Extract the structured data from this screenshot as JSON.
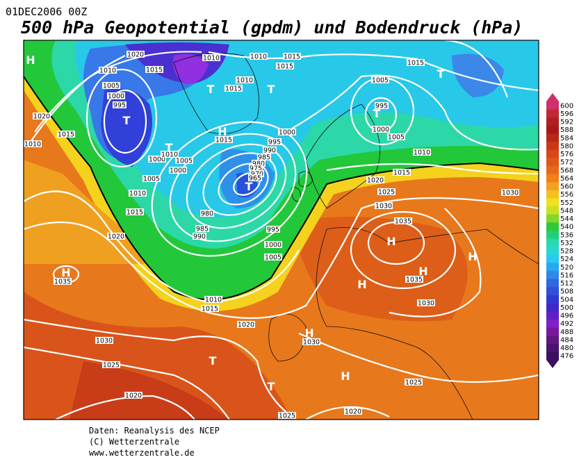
{
  "header": {
    "date": "01DEC2006 00Z",
    "title": "500 hPa Geopotential (gpdm) und Bodendruck (hPa)"
  },
  "colorbar": {
    "ticks": [
      600,
      596,
      592,
      588,
      584,
      580,
      576,
      572,
      568,
      564,
      560,
      556,
      552,
      548,
      544,
      540,
      536,
      532,
      528,
      524,
      520,
      516,
      512,
      508,
      504,
      500,
      496,
      492,
      488,
      484,
      480,
      476
    ]
  },
  "map": {
    "pressure_centers": [
      "H",
      "T",
      "T",
      "T",
      "H",
      "T",
      "T",
      "T",
      "T",
      "H",
      "H",
      "H",
      "H",
      "H",
      "H",
      "T",
      "T",
      "H"
    ],
    "isobar_labels": [
      1020,
      1010,
      1015,
      1005,
      1000,
      995,
      1010,
      1010,
      1015,
      1015,
      1010,
      1015,
      1005,
      995,
      1000,
      1005,
      1015,
      1020,
      1015,
      1010,
      1000,
      1005,
      1010,
      1005,
      1000,
      1015,
      1000,
      995,
      990,
      985,
      980,
      975,
      970,
      965,
      1010,
      1015,
      1020,
      980,
      985,
      990,
      995,
      1000,
      1005,
      1010,
      1015,
      1020,
      1025,
      1030,
      1035,
      1030,
      1035,
      1030,
      1035,
      1010,
      1015,
      1020,
      1030,
      1030,
      1025,
      1025,
      1020,
      1025,
      1020
    ]
  },
  "footer": {
    "lines": [
      "Daten: Reanalysis des NCEP",
      "(C) Wetterzentrale",
      "www.wetterzentrale.de"
    ]
  }
}
